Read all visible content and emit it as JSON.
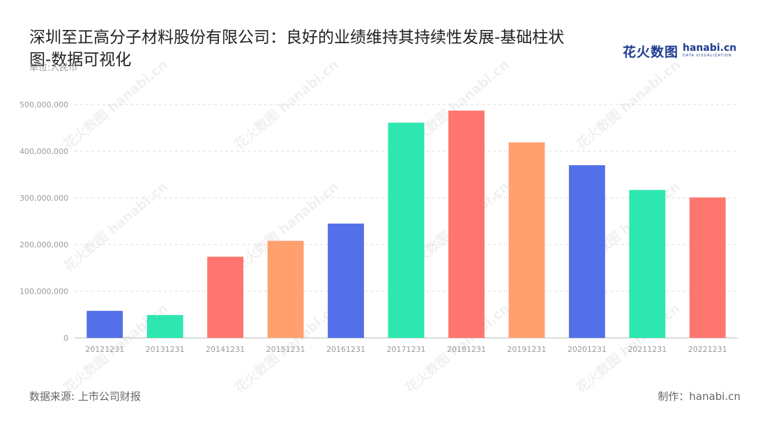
{
  "header": {
    "title": "深圳至正高分子材料股份有限公司：良好的业绩维持其持续性发展-基础柱状图-数据可视化",
    "unit": "单位:人民币"
  },
  "logo": {
    "cn_text": "花火数图",
    "en_text": "hanabi.cn",
    "en_sub": "DATA VISUALIZATION",
    "watermark_text": "花火数图 hanabi.cn"
  },
  "footer": {
    "source": "数据来源: 上市公司财报",
    "credit": "制作：hanabi.cn"
  },
  "chart_data": {
    "type": "bar",
    "categories": [
      "20121231",
      "20131231",
      "20141231",
      "20151231",
      "20161231",
      "20171231",
      "20181231",
      "20191231",
      "20201231",
      "20211231",
      "20221231"
    ],
    "values": [
      58000000,
      49000000,
      174000000,
      208000000,
      245000000,
      461000000,
      487000000,
      419000000,
      370000000,
      317000000,
      301000000
    ],
    "bar_colors": [
      "#5470e8",
      "#2ee6b0",
      "#ff7670",
      "#ffa06e",
      "#5470e8",
      "#2ee6b0",
      "#ff7670",
      "#ffa06e",
      "#5470e8",
      "#2ee6b0",
      "#ff7670"
    ],
    "ylim": [
      0,
      500000000
    ],
    "yticks": [
      0,
      100000000,
      200000000,
      300000000,
      400000000,
      500000000
    ],
    "ytick_labels": [
      "0",
      "100,000,000",
      "200,000,000",
      "300,000,000",
      "400,000,000",
      "500,000,000"
    ],
    "xlabel": "",
    "ylabel": "",
    "grid": "horizontal-dashed",
    "legend": "none"
  }
}
